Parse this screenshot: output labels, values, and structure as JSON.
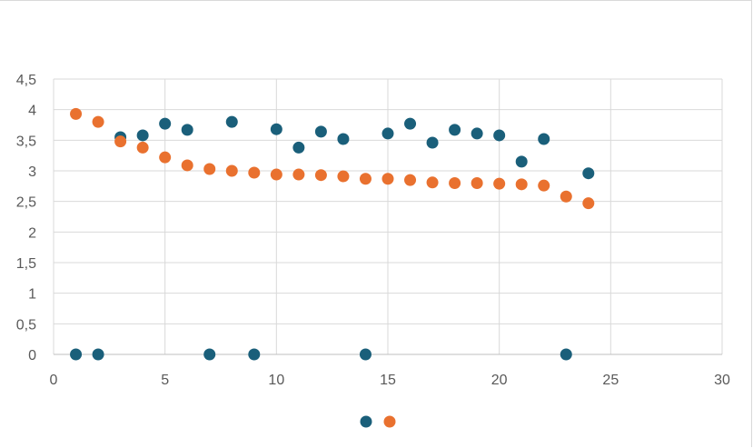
{
  "chart_data": {
    "type": "scatter",
    "title": "",
    "xlabel": "",
    "ylabel": "",
    "xlim": [
      0,
      30
    ],
    "ylim": [
      0,
      4.5
    ],
    "grid": true,
    "legend_position": "bottom",
    "x_ticks": [
      "0",
      "5",
      "10",
      "15",
      "20",
      "25",
      "30"
    ],
    "y_ticks": [
      "0",
      "0,5",
      "1",
      "1,5",
      "2",
      "2,5",
      "3",
      "3,5",
      "4",
      "4,5"
    ],
    "series": [
      {
        "color": "#1a5f7a",
        "points": [
          [
            1,
            0
          ],
          [
            2,
            0
          ],
          [
            3,
            3.55
          ],
          [
            4,
            3.58
          ],
          [
            5,
            3.77
          ],
          [
            6,
            3.67
          ],
          [
            7,
            0
          ],
          [
            8,
            3.8
          ],
          [
            9,
            0
          ],
          [
            10,
            3.68
          ],
          [
            11,
            3.38
          ],
          [
            12,
            3.64
          ],
          [
            13,
            3.52
          ],
          [
            14,
            0
          ],
          [
            15,
            3.61
          ],
          [
            16,
            3.77
          ],
          [
            17,
            3.46
          ],
          [
            18,
            3.67
          ],
          [
            19,
            3.61
          ],
          [
            20,
            3.58
          ],
          [
            21,
            3.15
          ],
          [
            22,
            3.52
          ],
          [
            23,
            0
          ],
          [
            24,
            2.96
          ]
        ]
      },
      {
        "color": "#e9712f",
        "points": [
          [
            1,
            3.93
          ],
          [
            2,
            3.8
          ],
          [
            3,
            3.48
          ],
          [
            4,
            3.38
          ],
          [
            5,
            3.22
          ],
          [
            6,
            3.09
          ],
          [
            7,
            3.03
          ],
          [
            8,
            3.0
          ],
          [
            9,
            2.97
          ],
          [
            10,
            2.94
          ],
          [
            11,
            2.94
          ],
          [
            12,
            2.93
          ],
          [
            13,
            2.91
          ],
          [
            14,
            2.87
          ],
          [
            15,
            2.87
          ],
          [
            16,
            2.85
          ],
          [
            17,
            2.81
          ],
          [
            18,
            2.8
          ],
          [
            19,
            2.8
          ],
          [
            20,
            2.79
          ],
          [
            21,
            2.78
          ],
          [
            22,
            2.76
          ],
          [
            23,
            2.58
          ],
          [
            24,
            2.47
          ]
        ]
      }
    ]
  }
}
